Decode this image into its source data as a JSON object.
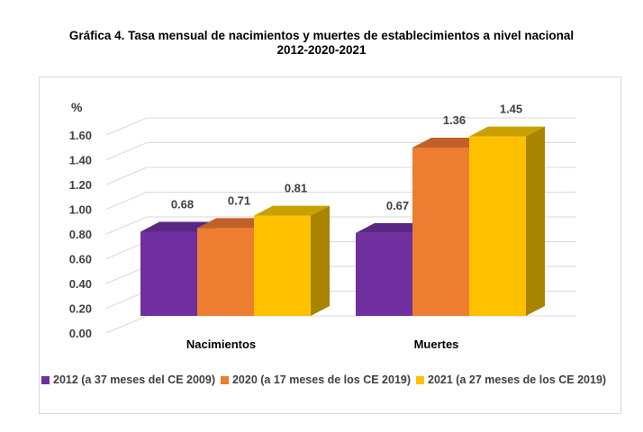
{
  "title_line1": "Gráfica 4. Tasa mensual de nacimientos y muertes de establecimientos a nivel nacional",
  "title_line2": "2012-2020-2021",
  "chart_data": {
    "type": "bar",
    "unit_label": "%",
    "categories": [
      "Nacimientos",
      "Muertes"
    ],
    "series": [
      {
        "name": "2012 (a 37 meses del CE 2009)",
        "values": [
          0.68,
          0.67
        ],
        "labels": [
          "0.68",
          "0.67"
        ],
        "color": "#7030a0",
        "top": "#5b2785",
        "side": "#4a1f6e"
      },
      {
        "name": "2020 (a 17 meses de los CE 2019)",
        "values": [
          0.71,
          1.36
        ],
        "labels": [
          "0.71",
          "1.36"
        ],
        "color": "#ed7d31",
        "top": "#c0602a",
        "side": "#a65223"
      },
      {
        "name": "2021 (a 27 meses de los CE 2019)",
        "values": [
          0.81,
          1.45
        ],
        "labels": [
          "0.81",
          "1.45"
        ],
        "color": "#ffc000",
        "top": "#c9a000",
        "side": "#a88400"
      }
    ],
    "ylim": [
      0,
      1.6
    ],
    "yticks": [
      "0.00",
      "0.20",
      "0.40",
      "0.60",
      "0.80",
      "1.00",
      "1.20",
      "1.40",
      "1.60"
    ],
    "grid": true,
    "legend_position": "bottom"
  }
}
